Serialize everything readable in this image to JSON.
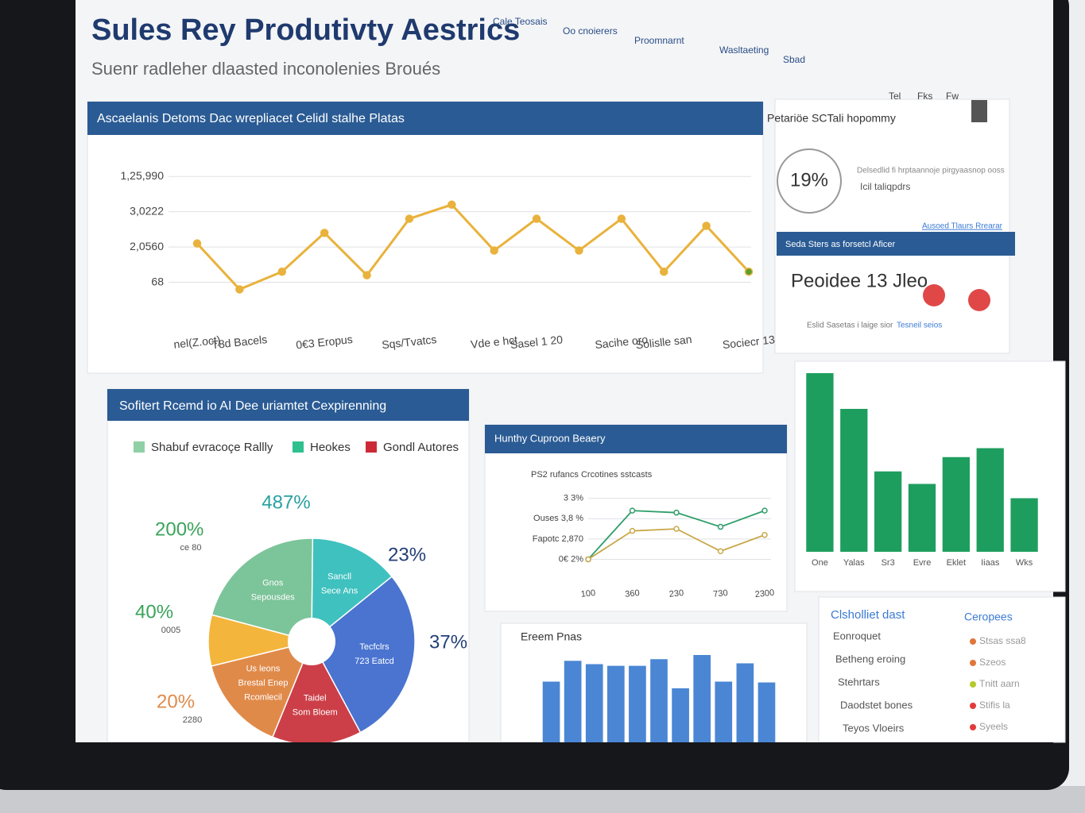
{
  "header": {
    "title": "Sules Rey Produtivty Aestrics",
    "subtitle": "Suenr radleher dlaasted inconolenies Broués"
  },
  "nav": [
    "Cale Teosais",
    "Oo cnoierers",
    "Proomnarnt",
    "Wasltaeting",
    "Sbad"
  ],
  "toolbar": [
    "Tel",
    "Fks",
    "Fw"
  ],
  "side_panel": {
    "title": "Petariöe SCTali hopommy",
    "gauge": "19%",
    "gauge_text": "Delsedlid fi hrptaannoje pirgyaasnop ooss",
    "gauge_subtext": "Icil taliqpdrs",
    "link": "Ausoed Tlaurs Rrearar",
    "section": "Seda Sters as forsetcl Aficer",
    "stat": "Peoidee 13 Jleo",
    "tabs": [
      "Eslid Sasetas i laige sior",
      "Tesneil seios"
    ]
  },
  "list_panel": {
    "left_title": "Clsholliet dast",
    "left_items": [
      "Eonroquet",
      "Betheng eroing",
      "Stehrtars",
      "Daodstet bones",
      "Teyos Vloeirs"
    ],
    "right_title": "Ceropees",
    "right_items": [
      {
        "label": "Stsas ssa8",
        "color": "#e0763c"
      },
      {
        "label": "Szeos",
        "color": "#e0763c"
      },
      {
        "label": "Tnitt aarn",
        "color": "#b5c92c"
      },
      {
        "label": "Stifis la",
        "color": "#e23a3a"
      },
      {
        "label": "Syeels",
        "color": "#e23a3a"
      }
    ]
  },
  "chart_data": [
    {
      "type": "line",
      "title": "Ascaelanis Detoms Dac wrepliacet Celidl stalhe Platas",
      "categories": [
        "nel(Z.oct)",
        "T8d Bacels",
        null,
        "0€3 Eropus",
        null,
        "Sqs/Tvatcs",
        null,
        "Vde e hct",
        "Sasel 1 20",
        null,
        "Sacihe oro",
        "Solislle san",
        null,
        "Sociecr 13"
      ],
      "ylabels": [
        "1,25,990",
        "3,0222",
        "2,0560",
        "68"
      ],
      "ylim": [
        0,
        4.5
      ],
      "grid": true,
      "series": [
        {
          "color": "#e9b23c",
          "end_color": "#5aa02c",
          "values": [
            2.1,
            0.8,
            1.3,
            2.4,
            1.2,
            2.8,
            3.2,
            1.9,
            2.8,
            1.9,
            2.8,
            1.3,
            2.6,
            1.3
          ]
        }
      ]
    },
    {
      "type": "pie",
      "title": "Sofitert Rcemd io AI Dee uriamtet Cexpirenning",
      "legend": [
        {
          "name": "Shabuf evracoçe Rallly",
          "color": "#8fd0a6"
        },
        {
          "name": "Heokes",
          "color": "#2fc08f"
        },
        {
          "name": "Gondl Autores",
          "color": "#cc2a36"
        }
      ],
      "categories": [
        [
          "Gnos",
          "Sepousdes"
        ],
        [
          "Sancll",
          "Sece Ans"
        ],
        [
          "Tecfclrs",
          "723 Eatcd"
        ],
        [
          "Taidel",
          "Som Bloem"
        ],
        [
          "Us leons",
          "Brestal Enep",
          "Rcomlecil"
        ],
        null
      ],
      "values": [
        21,
        14,
        28,
        14,
        15,
        8
      ],
      "colors": [
        "#7cc49a",
        "#3fc1bf",
        "#4a74d0",
        "#cc3f48",
        "#e08a4a",
        "#f3b53c"
      ],
      "start_angle": -75,
      "annotations": [
        {
          "text": "487%",
          "color": "#2aa0a0"
        },
        {
          "text": "23%",
          "color": "#243f78"
        },
        {
          "text": "37%",
          "color": "#243f78"
        },
        {
          "text": "200%",
          "note": "ce 80",
          "color": "#3aa45a"
        },
        {
          "text": "40%",
          "note": "0005",
          "color": "#3aa45a"
        },
        {
          "text": "20%",
          "note": "2280",
          "color": "#e08a4a"
        }
      ]
    },
    {
      "type": "line",
      "title": "Hunthy Cuproon Beaery",
      "subtitle": "PS2 rufancs Crcotines sstcasts",
      "categories": [
        "100",
        "360",
        "230",
        "730",
        "2300"
      ],
      "ylabels": [
        "3 3%",
        "Ouses 3,8 %",
        "Fapotc 2,870",
        "0€ 2%"
      ],
      "ylim": [
        0,
        4.5
      ],
      "grid": true,
      "series": [
        {
          "color": "#2f9e6a",
          "values": [
            1.0,
            3.4,
            3.3,
            2.6,
            3.4
          ]
        },
        {
          "color": "#c9a84a",
          "values": [
            1.0,
            2.4,
            2.5,
            1.4,
            2.2
          ]
        }
      ]
    },
    {
      "type": "bar",
      "categories": [
        "One",
        "Yalas",
        "Sr3",
        "Evre",
        "Eklet",
        "Iiaas",
        "Wks"
      ],
      "values": [
        100,
        80,
        45,
        38,
        53,
        58,
        30
      ],
      "color": "#1e9e5e"
    },
    {
      "type": "bar",
      "title": "Ereem Pnas",
      "values": [
        73,
        98,
        94,
        92,
        92,
        100,
        65,
        105,
        73,
        95,
        72
      ],
      "color": "#4a86d4"
    }
  ]
}
